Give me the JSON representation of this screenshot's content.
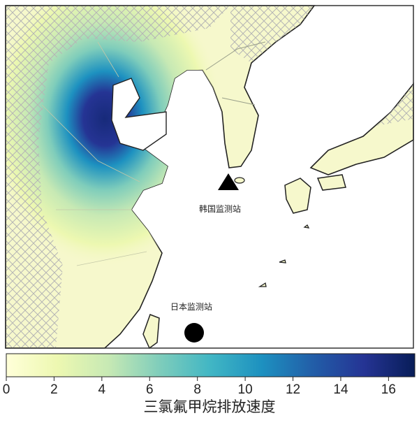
{
  "map": {
    "stations": [
      {
        "label": "韩国监测站",
        "marker": "triangle"
      },
      {
        "label": "日本监测站",
        "marker": "circle"
      }
    ],
    "colors": {
      "sea": "#ffffff",
      "land_base": "#f6f8cc",
      "coast": "#222222",
      "border": "#9aa08a",
      "hatch": "#b8b8b8"
    }
  },
  "colorbar": {
    "title": "三氯氟甲烷排放速度",
    "min": 0,
    "max": 17.1,
    "ticks": [
      "0",
      "2",
      "4",
      "6",
      "8",
      "10",
      "12",
      "14",
      "16"
    ],
    "colormap": [
      "#ffffd9",
      "#edf8b1",
      "#c7e9b4",
      "#7fcdbb",
      "#41b6c4",
      "#1d91c0",
      "#225ea8",
      "#253494",
      "#081d58"
    ]
  }
}
